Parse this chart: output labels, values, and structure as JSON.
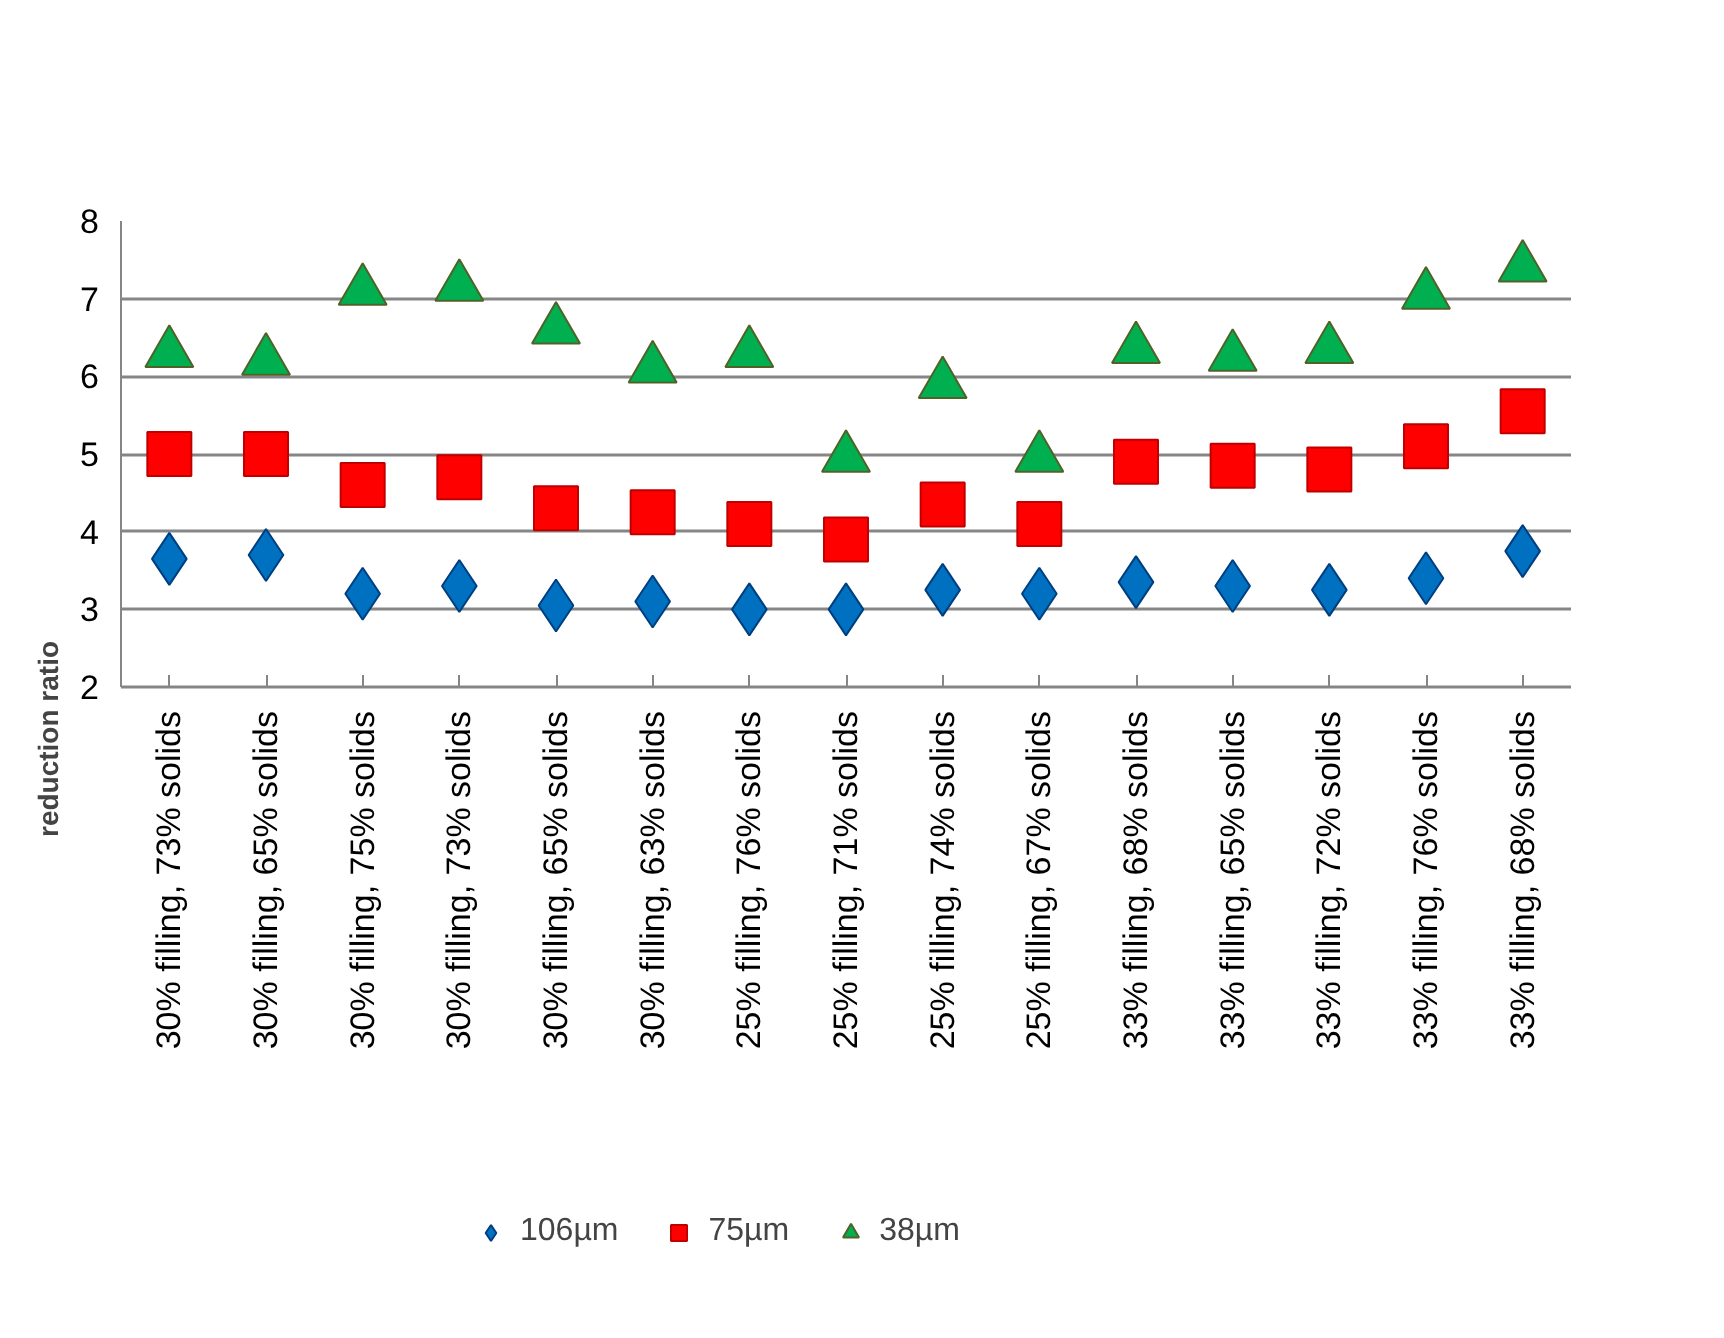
{
  "chart_data": {
    "type": "scatter",
    "ylabel": "reduction ratio",
    "categories": [
      "30% filling, 73% solids",
      "30% filling, 65% solids",
      "30% filling, 75% solids",
      "30% filling, 73% solids",
      "30% filling, 65% solids",
      "30% filling, 63% solids",
      "25% filling, 76% solids",
      "25% filling, 71% solids",
      "25% filling, 74% solids",
      "25% filling, 67% solids",
      "33% filling, 68% solids",
      "33% filling, 65% solids",
      "33% filling, 72% solids",
      "33% filling, 76% solids",
      "33% filling, 68% solids"
    ],
    "series": [
      {
        "name": "106µm",
        "color": "#0070c0",
        "marker": "diamond",
        "values": [
          3.65,
          3.7,
          3.2,
          3.3,
          3.05,
          3.1,
          3.0,
          3.0,
          3.25,
          3.2,
          3.35,
          3.3,
          3.25,
          3.4,
          3.75
        ]
      },
      {
        "name": "75µm",
        "color": "#ff0000",
        "marker": "square",
        "values": [
          5.0,
          5.0,
          4.6,
          4.7,
          4.3,
          4.25,
          4.1,
          3.9,
          4.35,
          4.1,
          4.9,
          4.85,
          4.8,
          5.1,
          5.55
        ]
      },
      {
        "name": "38µm",
        "color": "#00b050",
        "marker": "triangle",
        "values": [
          6.3,
          6.2,
          7.1,
          7.15,
          6.6,
          6.1,
          6.3,
          4.95,
          5.9,
          4.95,
          6.35,
          6.25,
          6.35,
          7.05,
          7.4
        ]
      }
    ],
    "ylim": [
      2,
      8
    ],
    "yticks": [
      2,
      3,
      4,
      5,
      6,
      7,
      8
    ],
    "grid": "y",
    "legend": "bottom"
  }
}
